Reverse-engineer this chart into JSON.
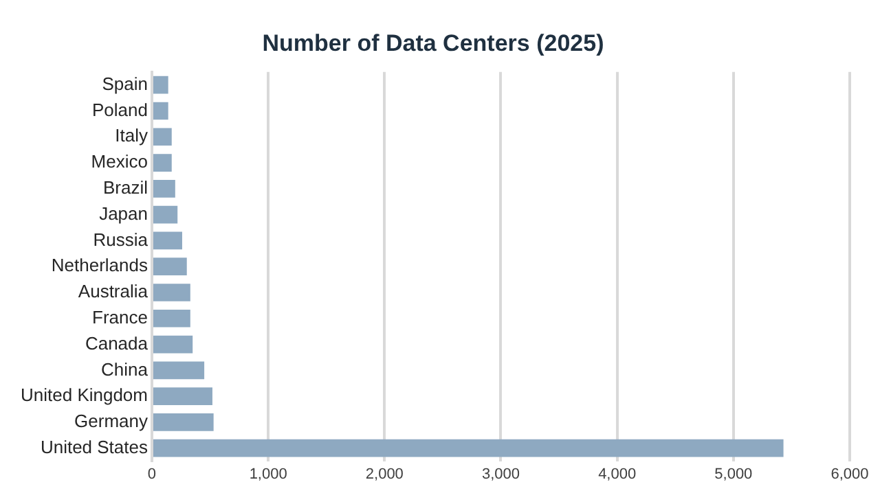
{
  "chart_data": {
    "type": "bar",
    "orientation": "horizontal",
    "title": "Number of Data Centers (2025)",
    "categories": [
      "Spain",
      "Poland",
      "Italy",
      "Mexico",
      "Brazil",
      "Japan",
      "Russia",
      "Netherlands",
      "Australia",
      "France",
      "Canada",
      "China",
      "United Kingdom",
      "Germany",
      "United States"
    ],
    "values": [
      140,
      140,
      170,
      170,
      200,
      220,
      260,
      300,
      330,
      330,
      350,
      450,
      520,
      530,
      5430
    ],
    "color": "#8ea9c1",
    "xlim": [
      0,
      6000
    ],
    "xticks": [
      0,
      {
        "value": 1000,
        "label": "1,000"
      },
      {
        "value": 2000,
        "label": "2,000"
      },
      {
        "value": 3000,
        "label": "3,000"
      },
      {
        "value": 4000,
        "label": "4,000"
      },
      {
        "value": 5000,
        "label": "5,000"
      },
      {
        "value": 6000,
        "label": "6,000"
      }
    ],
    "grid": "x",
    "legend": false
  }
}
